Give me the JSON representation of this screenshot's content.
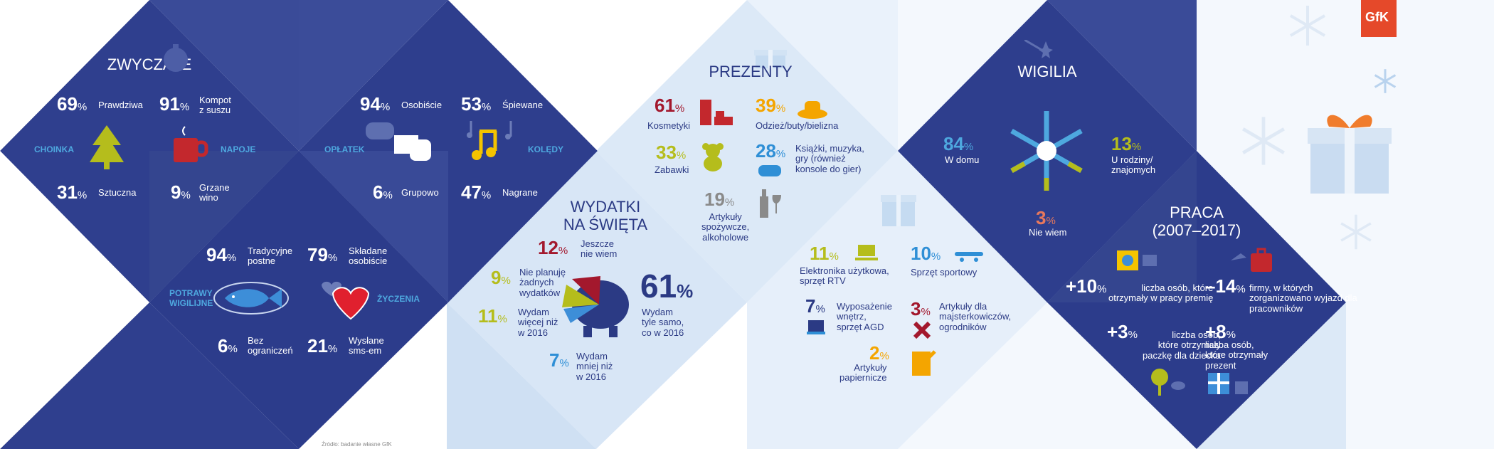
{
  "brand": {
    "logo_text": "GfK",
    "logo_color": "#e5492a"
  },
  "colors": {
    "navy": "#2b3a84",
    "navy_light": "#3d4e99",
    "light_blue": "#dce9f7",
    "pale_blue": "#eef4fb",
    "red": "#a3182d",
    "yellow_green": "#b5bd1c",
    "amber": "#f4a500",
    "sky": "#2f8fd6",
    "salmon": "#e8785c"
  },
  "zwyczaje": {
    "title": "ZWYCZAJE",
    "choinka_tag": "CHOINKA",
    "choinka_real_value": "69",
    "choinka_real_label": "Prawdziwa",
    "choinka_artificial_value": "31",
    "choinka_artificial_label": "Sztuczna",
    "napoje_tag": "NAPOJE",
    "kompot_value": "91",
    "kompot_label_1": "Kompot",
    "kompot_label_2": "z suszu",
    "grzane_value": "9",
    "grzane_label_1": "Grzane",
    "grzane_label_2": "wino",
    "oplatek_tag": "OPŁATEK",
    "osobiscie_value": "94",
    "osobiscie_label": "Osobiście",
    "grupowo_value": "6",
    "grupowo_label": "Grupowo",
    "koledy_tag": "KOLĘDY",
    "spiewane_value": "53",
    "spiewane_label": "Śpiewane",
    "nagrane_value": "47",
    "nagrane_label": "Nagrane",
    "potrawy_tag_1": "POTRAWY",
    "potrawy_tag_2": "WIGILIJNE",
    "tradycyjne_value": "94",
    "tradycyjne_label_1": "Tradycyjne",
    "tradycyjne_label_2": "postne",
    "bez_value": "6",
    "bez_label_1": "Bez",
    "bez_label_2": "ograniczeń",
    "zyczenia_tag": "ŻYCZENIA",
    "skladane_value": "79",
    "skladane_label_1": "Składane",
    "skladane_label_2": "osobiście",
    "sms_value": "21",
    "sms_label_1": "Wysłane",
    "sms_label_2": "sms-em"
  },
  "wydatki": {
    "title_1": "WYDATKI",
    "title_2": "NA ŚWIĘTA",
    "nie_wiem_value": "12",
    "nie_wiem_label_1": "Jeszcze",
    "nie_wiem_label_2": "nie wiem",
    "brak_value": "9",
    "brak_label_1": "Nie planuję",
    "brak_label_2": "żadnych",
    "brak_label_3": "wydatków",
    "wiecej_value": "11",
    "wiecej_label_1": "Wydam",
    "wiecej_label_2": "więcej niż",
    "wiecej_label_3": "w 2016",
    "tyle_value": "61",
    "tyle_label_1": "Wydam",
    "tyle_label_2": "tyle samo,",
    "tyle_label_3": "co w 2016",
    "mniej_value": "7",
    "mniej_label_1": "Wydam",
    "mniej_label_2": "mniej niż",
    "mniej_label_3": "w 2016"
  },
  "prezenty": {
    "title": "PREZENTY",
    "kosmetyki_value": "61",
    "kosmetyki_label": "Kosmetyki",
    "odziez_value": "39",
    "odziez_label": "Odzież/buty/bielizna",
    "zabawki_value": "33",
    "zabawki_label": "Zabawki",
    "ksiazki_value": "28",
    "ksiazki_label_1": "Książki, muzyka,",
    "ksiazki_label_2": "gry (również",
    "ksiazki_label_3": "konsole do gier)",
    "artykuly_value": "19",
    "artykuly_label_1": "Artykuły",
    "artykuly_label_2": "spożywcze,",
    "artykuly_label_3": "alkoholowe",
    "elektronika_value": "11",
    "elektronika_label_1": "Elektronika użytkowa,",
    "elektronika_label_2": "sprzęt RTV",
    "sportowy_value": "10",
    "sportowy_label": "Sprzęt sportowy",
    "agd_value": "7",
    "agd_label_1": "Wyposażenie",
    "agd_label_2": "wnętrz,",
    "agd_label_3": "sprzęt AGD",
    "majsterkowicze_value": "3",
    "majsterkowicze_label_1": "Artykuły dla",
    "majsterkowicze_label_2": "majsterkowiczów,",
    "majsterkowicze_label_3": "ogrodników",
    "papiernicze_value": "2",
    "papiernicze_label_1": "Artykuły",
    "papiernicze_label_2": "papiernicze"
  },
  "wigilia": {
    "title": "WIGILIA",
    "w_domu_value": "84",
    "w_domu_label": "W domu",
    "u_rodziny_value": "13",
    "u_rodziny_label_1": "U rodziny/",
    "u_rodziny_label_2": "znajomych",
    "nie_wiem_value": "3",
    "nie_wiem_label": "Nie wiem"
  },
  "praca": {
    "title_1": "PRACA",
    "title_2": "(2007–2017)",
    "premia_value": "+10",
    "premia_label_1": "liczba osób, które",
    "premia_label_2": "otrzymały w pracy premię",
    "wyjazd_value": "–14",
    "wyjazd_label_1": "firmy, w których",
    "wyjazd_label_2": "zorganizowano wyjazd dla",
    "wyjazd_label_3": "pracowników",
    "paczka_value": "+3",
    "paczka_label_1": "liczba osób,",
    "paczka_label_2": "które otrzymały",
    "paczka_label_3": "paczkę dla dziecka",
    "prezent_value": "+8",
    "prezent_label_1": "liczba osób,",
    "prezent_label_2": "które otrzymały",
    "prezent_label_3": "prezent"
  },
  "footer": {
    "source": "Źródło: badanie własne GfK"
  },
  "percent_sign": "%"
}
